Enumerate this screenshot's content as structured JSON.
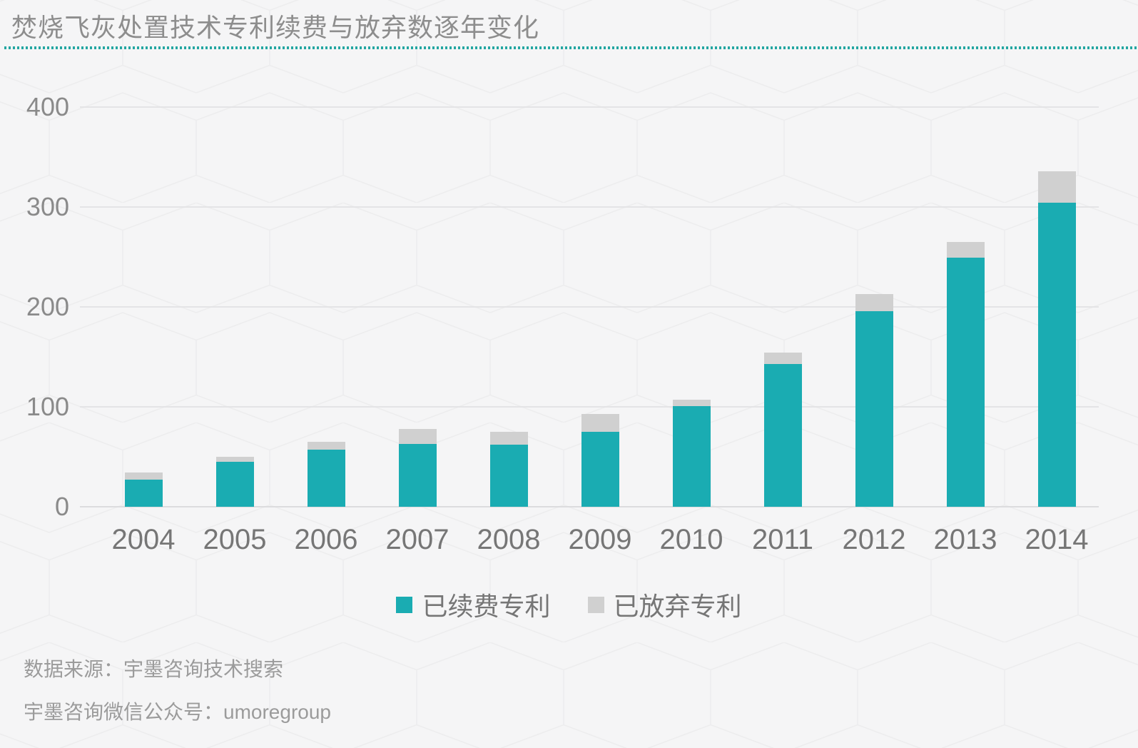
{
  "header": {
    "title": "焚烧飞灰处置技术专利续费与放弃数逐年变化"
  },
  "chart_data": {
    "type": "bar",
    "stacked": true,
    "title": "焚烧飞灰处置技术专利续费与放弃数逐年变化",
    "categories": [
      "2004",
      "2005",
      "2006",
      "2007",
      "2008",
      "2009",
      "2010",
      "2011",
      "2012",
      "2013",
      "2014"
    ],
    "series": [
      {
        "name": "已续费专利",
        "color": "#1aacb2",
        "values": [
          27,
          45,
          57,
          63,
          62,
          75,
          101,
          143,
          196,
          249,
          304
        ]
      },
      {
        "name": "已放弃专利",
        "color": "#d0d0d0",
        "values": [
          7,
          5,
          8,
          15,
          13,
          18,
          6,
          11,
          17,
          16,
          32
        ]
      }
    ],
    "xlabel": "",
    "ylabel": "",
    "y_ticks": [
      0,
      100,
      200,
      300,
      400
    ],
    "ylim": [
      0,
      400
    ],
    "grid": "horizontal",
    "legend_position": "bottom-center"
  },
  "footer": {
    "source_line": "数据来源：宇墨咨询技术搜索",
    "wechat_line": "宇墨咨询微信公众号：umoregroup"
  },
  "colors": {
    "renewed_teal": "#1aacb2",
    "abandoned_gray": "#d0d0d0",
    "divider_teal": "#23a6a1",
    "gridline": "#e4e4e6",
    "background": "#f5f5f6",
    "text_gray": "#8d8d8d"
  }
}
